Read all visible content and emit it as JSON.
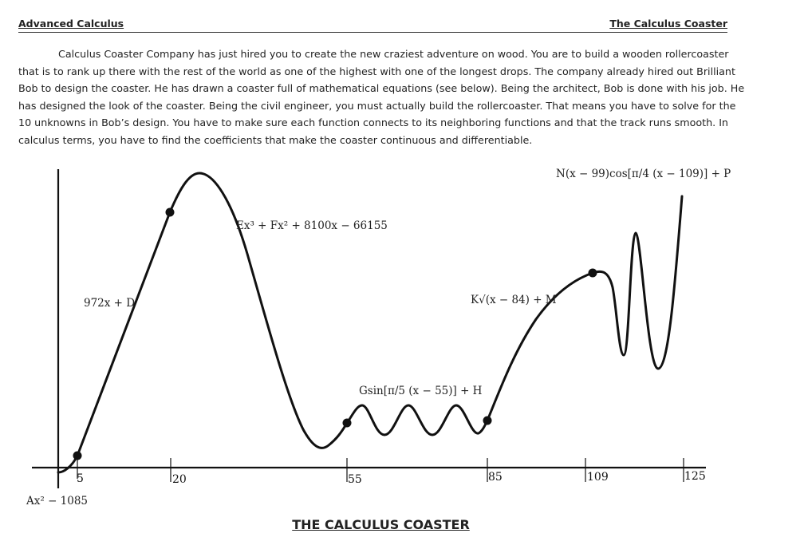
{
  "header": {
    "left": "Advanced Calculus",
    "right": "The Calculus Coaster"
  },
  "intro": "Calculus Coaster Company has just hired you to create the new craziest adventure on wood. You are to build a wooden rollercoaster that is to rank up there with the rest of the world as one of the highest with one of the longest drops. The company already hired out Brilliant Bob to design the coaster. He has drawn a coaster full of mathematical equations (see below). Being the architect, Bob is done with his job. He has designed the look of the coaster. Being the civil engineer, you must actually build the rollercoaster. That means you have to solve for the 10 unknowns in Bob’s design. You have to make sure each function connects to its neighboring functions and that the track runs smooth. In calculus terms, you have to find the coefficients that make the coaster continuous and differentiable.",
  "diagram": {
    "equations": {
      "segment1": "Ax² − 1085",
      "segment2": "972x + D",
      "segment3": "Ex³ + Fx² + 8100x − 66155",
      "segment4": "Gsin[π/5 (x − 55)] + H",
      "segment5": "K√(x − 84) + M",
      "segment6": "N(x − 99)cos[π/4 (x − 109)] + P"
    },
    "x_ticks": [
      "5",
      "20",
      "55",
      "85",
      "109",
      "125"
    ],
    "title": "THE CALCULUS COASTER"
  }
}
